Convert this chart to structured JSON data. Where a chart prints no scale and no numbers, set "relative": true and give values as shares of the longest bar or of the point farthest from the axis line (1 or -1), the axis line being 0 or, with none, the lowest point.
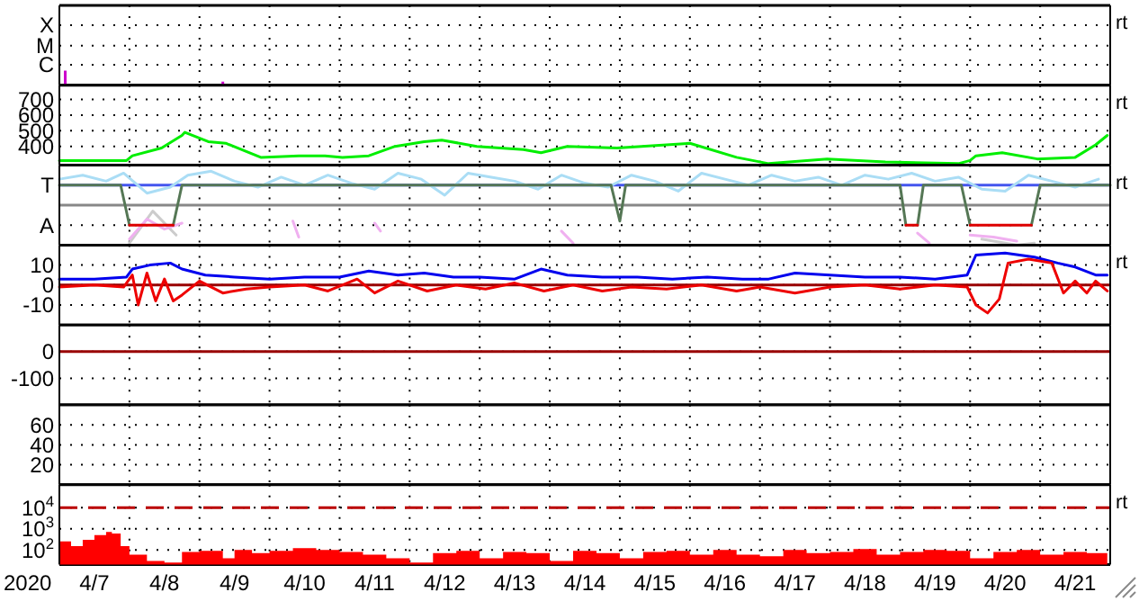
{
  "chart_data": [
    {
      "type": "bar",
      "relative": true,
      "grid": "x",
      "tick_labels": "y",
      "annotations": [
        "rt"
      ],
      "xlim": [
        "2020-04-07T00:00",
        "2020-04-22T00:00"
      ],
      "xticks": [
        {
          "value": "2020-04-08T00:00",
          "label": null
        },
        {
          "value": "2020-04-09T00:00",
          "label": null
        },
        {
          "value": "2020-04-10T00:00",
          "label": null
        },
        {
          "value": "2020-04-11T00:00",
          "label": null
        },
        {
          "value": "2020-04-12T00:00",
          "label": null
        },
        {
          "value": "2020-04-13T00:00",
          "label": null
        },
        {
          "value": "2020-04-14T00:00",
          "label": null
        },
        {
          "value": "2020-04-15T00:00",
          "label": null
        },
        {
          "value": "2020-04-16T00:00",
          "label": null
        },
        {
          "value": "2020-04-17T00:00",
          "label": null
        },
        {
          "value": "2020-04-18T00:00",
          "label": null
        },
        {
          "value": "2020-04-19T00:00",
          "label": null
        },
        {
          "value": "2020-04-20T00:00",
          "label": null
        },
        {
          "value": "2020-04-21T00:00",
          "label": null
        }
      ],
      "ref_lines": [
        {
          "axis": "y",
          "value": 1.4,
          "label": "C",
          "color": "#000000",
          "line_style": "dotted"
        },
        {
          "axis": "y",
          "value": 2.7,
          "label": "M",
          "color": "#000000",
          "line_style": "dotted"
        },
        {
          "axis": "y",
          "value": 4.1,
          "label": "X",
          "color": "#000000",
          "line_style": "dotted"
        }
      ],
      "series": [
        {
          "color": "#cc00cc",
          "x": [
            "2020-04-07T02:00",
            "2020-04-09T08:00"
          ],
          "values": [
            1,
            0.25
          ]
        }
      ]
    },
    {
      "type": "line",
      "grid": true,
      "tick_labels": "y",
      "annotations": [
        "rt"
      ],
      "xlim": [
        "2020-04-07T00:00",
        "2020-04-22T00:00"
      ],
      "xticks": [
        {
          "value": "2020-04-08T00:00",
          "label": null
        },
        {
          "value": "2020-04-09T00:00",
          "label": null
        },
        {
          "value": "2020-04-10T00:00",
          "label": null
        },
        {
          "value": "2020-04-11T00:00",
          "label": null
        },
        {
          "value": "2020-04-12T00:00",
          "label": null
        },
        {
          "value": "2020-04-13T00:00",
          "label": null
        },
        {
          "value": "2020-04-14T00:00",
          "label": null
        },
        {
          "value": "2020-04-15T00:00",
          "label": null
        },
        {
          "value": "2020-04-16T00:00",
          "label": null
        },
        {
          "value": "2020-04-17T00:00",
          "label": null
        },
        {
          "value": "2020-04-18T00:00",
          "label": null
        },
        {
          "value": "2020-04-19T00:00",
          "label": null
        },
        {
          "value": "2020-04-20T00:00",
          "label": null
        },
        {
          "value": "2020-04-21T00:00",
          "label": null
        }
      ],
      "ylim": [
        280,
        790
      ],
      "yticks": [
        400,
        500,
        600,
        700
      ],
      "series": [
        {
          "color": "#00ee00",
          "x": [
            "2020-04-07T00:00",
            "2020-04-07T23:00",
            "2020-04-08T01:00",
            "2020-04-08T11:00",
            "2020-04-08T18:00",
            "2020-04-08T19:00",
            "2020-04-09T03:00",
            "2020-04-09T09:00",
            "2020-04-09T21:00",
            "2020-04-10T10:00",
            "2020-04-10T19:00",
            "2020-04-11T01:00",
            "2020-04-11T10:00",
            "2020-04-11T19:00",
            "2020-04-12T05:00",
            "2020-04-12T11:00",
            "2020-04-12T23:00",
            "2020-04-13T15:00",
            "2020-04-13T21:00",
            "2020-04-14T06:00",
            "2020-04-14T23:00",
            "2020-04-16T00:00",
            "2020-04-16T16:00",
            "2020-04-17T03:00",
            "2020-04-17T23:00",
            "2020-04-18T19:00",
            "2020-04-19T20:00",
            "2020-04-20T00:00",
            "2020-04-20T02:00",
            "2020-04-20T11:00",
            "2020-04-20T23:00",
            "2020-04-21T12:00",
            "2020-04-21T19:00",
            "2020-04-21T23:00"
          ],
          "values": [
            310,
            310,
            340,
            390,
            470,
            490,
            430,
            420,
            330,
            340,
            340,
            330,
            340,
            400,
            430,
            440,
            400,
            380,
            360,
            400,
            390,
            420,
            330,
            290,
            320,
            300,
            290,
            310,
            340,
            360,
            320,
            330,
            410,
            470
          ]
        }
      ]
    },
    {
      "type": "line",
      "relative": true,
      "grid": "x",
      "tick_labels": "y",
      "annotations": [
        "rt"
      ],
      "xlim": [
        "2020-04-07T00:00",
        "2020-04-22T00:00"
      ],
      "xticks": [
        {
          "value": "2020-04-08T00:00",
          "label": null
        },
        {
          "value": "2020-04-09T00:00",
          "label": null
        },
        {
          "value": "2020-04-10T00:00",
          "label": null
        },
        {
          "value": "2020-04-11T00:00",
          "label": null
        },
        {
          "value": "2020-04-12T00:00",
          "label": null
        },
        {
          "value": "2020-04-13T00:00",
          "label": null
        },
        {
          "value": "2020-04-14T00:00",
          "label": null
        },
        {
          "value": "2020-04-15T00:00",
          "label": null
        },
        {
          "value": "2020-04-16T00:00",
          "label": null
        },
        {
          "value": "2020-04-17T00:00",
          "label": null
        },
        {
          "value": "2020-04-18T00:00",
          "label": null
        },
        {
          "value": "2020-04-19T00:00",
          "label": null
        },
        {
          "value": "2020-04-20T00:00",
          "label": null
        },
        {
          "value": "2020-04-21T00:00",
          "label": null
        }
      ],
      "ref_lines": [
        {
          "axis": "y",
          "value": 0.5,
          "label": "T",
          "color": "#4455ee"
        },
        {
          "axis": "y",
          "value": 0,
          "color": "#888888"
        },
        {
          "axis": "y",
          "value": -0.5,
          "label": "A",
          "color": "#000000",
          "line_style": "dotted"
        }
      ],
      "series": [
        {
          "color": "#cccccc",
          "x": [
            "2020-04-08T00:00",
            "2020-04-08T08:00",
            "2020-04-08T16:00",
            "2020-04-09T00:00",
            "2020-04-20T04:00",
            "2020-04-20T16:00",
            "2020-04-20T22:00"
          ],
          "values": [
            -0.95,
            -0.15,
            -0.75,
            null,
            -0.85,
            -1,
            -0.95
          ]
        },
        {
          "color": "#aaddf5",
          "x": [
            "2020-04-07T00:00",
            "2020-04-07T08:00",
            "2020-04-07T16:00",
            "2020-04-07T22:00",
            "2020-04-08T06:00",
            "2020-04-08T14:00",
            "2020-04-08T20:00",
            "2020-04-09T04:00",
            "2020-04-09T12:00",
            "2020-04-09T20:00",
            "2020-04-10T04:00",
            "2020-04-10T12:00",
            "2020-04-10T20:00",
            "2020-04-11T04:00",
            "2020-04-11T12:00",
            "2020-04-11T20:00",
            "2020-04-12T04:00",
            "2020-04-12T12:00",
            "2020-04-12T20:00",
            "2020-04-13T04:00",
            "2020-04-13T12:00",
            "2020-04-13T20:00",
            "2020-04-14T04:00",
            "2020-04-14T12:00",
            "2020-04-14T20:00",
            "2020-04-15T04:00",
            "2020-04-15T12:00",
            "2020-04-15T20:00",
            "2020-04-16T04:00",
            "2020-04-16T12:00",
            "2020-04-16T20:00",
            "2020-04-17T04:00",
            "2020-04-17T12:00",
            "2020-04-17T20:00",
            "2020-04-18T04:00",
            "2020-04-18T12:00",
            "2020-04-18T20:00",
            "2020-04-19T04:00",
            "2020-04-19T12:00",
            "2020-04-19T20:00",
            "2020-04-20T04:00",
            "2020-04-20T12:00",
            "2020-04-20T20:00",
            "2020-04-21T04:00",
            "2020-04-21T12:00",
            "2020-04-21T20:00"
          ],
          "values": [
            0.65,
            0.75,
            0.6,
            0.8,
            0.3,
            0.45,
            0.75,
            0.85,
            0.6,
            0.45,
            0.7,
            0.5,
            0.75,
            0.55,
            0.4,
            0.8,
            0.65,
            0.25,
            0.8,
            0.7,
            0.6,
            0.4,
            0.75,
            0.55,
            0.45,
            0.75,
            0.6,
            0.35,
            0.8,
            0.65,
            0.5,
            0.75,
            0.6,
            0.7,
            0.5,
            0.75,
            0.65,
            0.8,
            0.6,
            0.7,
            0.4,
            0.35,
            0.75,
            0.6,
            0.45,
            0.65
          ]
        },
        {
          "color": "#f0b0f0",
          "x": [
            "2020-04-08T00:00",
            "2020-04-08T06:00",
            "2020-04-08T12:00",
            "2020-04-08T18:00",
            "2020-04-09T00:00",
            "2020-04-10T08:00",
            "2020-04-10T10:00",
            "2020-04-10T14:00",
            "2020-04-11T12:00",
            "2020-04-11T14:00",
            "2020-04-11T18:00",
            "2020-04-14T04:00",
            "2020-04-14T08:00",
            "2020-04-14T12:00",
            "2020-04-19T06:00",
            "2020-04-19T10:00",
            "2020-04-19T14:00",
            "2020-04-20T00:00",
            "2020-04-20T08:00",
            "2020-04-20T16:00"
          ],
          "values": [
            -0.85,
            -0.35,
            -0.6,
            -0.45,
            null,
            -0.4,
            -0.8,
            null,
            -0.45,
            -0.65,
            null,
            -0.65,
            -0.95,
            null,
            -0.7,
            -0.95,
            null,
            -0.75,
            -0.8,
            -0.9
          ]
        },
        {
          "color": "#557755",
          "x": [
            "2020-04-07T00:00",
            "2020-04-07T21:00",
            "2020-04-08T00:00",
            "2020-04-08T07:00",
            "2020-04-08T15:00",
            "2020-04-08T18:00",
            "2020-04-14T21:00",
            "2020-04-15T00:00",
            "2020-04-15T02:00",
            "2020-04-19T00:00",
            "2020-04-19T02:00",
            "2020-04-19T04:00",
            "2020-04-19T06:00",
            "2020-04-19T08:00",
            "2020-04-19T21:00",
            "2020-04-20T00:00",
            "2020-04-20T10:00",
            "2020-04-20T21:00",
            "2020-04-21T00:00",
            "2020-04-22T00:00"
          ],
          "values": [
            0.5,
            0.5,
            -0.5,
            null,
            -0.5,
            0.5,
            0.5,
            -0.4,
            0.5,
            0.5,
            -0.5,
            null,
            -0.5,
            0.5,
            0.5,
            -0.5,
            null,
            -0.5,
            0.5,
            0.5
          ]
        },
        {
          "color": "#dd0000",
          "x": [
            "2020-04-08T00:00",
            "2020-04-08T15:00",
            "2020-04-08T16:00",
            "2020-04-19T02:00",
            "2020-04-19T06:00",
            "2020-04-19T07:00",
            "2020-04-20T00:00",
            "2020-04-20T21:00"
          ],
          "values": [
            -0.5,
            -0.5,
            null,
            -0.5,
            -0.5,
            null,
            -0.5,
            -0.5
          ]
        }
      ]
    },
    {
      "type": "line",
      "grid": true,
      "tick_labels": "y",
      "annotations": [
        "rt"
      ],
      "xlim": [
        "2020-04-07T00:00",
        "2020-04-22T00:00"
      ],
      "xticks": [
        {
          "value": "2020-04-08T00:00",
          "label": null
        },
        {
          "value": "2020-04-09T00:00",
          "label": null
        },
        {
          "value": "2020-04-10T00:00",
          "label": null
        },
        {
          "value": "2020-04-11T00:00",
          "label": null
        },
        {
          "value": "2020-04-12T00:00",
          "label": null
        },
        {
          "value": "2020-04-13T00:00",
          "label": null
        },
        {
          "value": "2020-04-14T00:00",
          "label": null
        },
        {
          "value": "2020-04-15T00:00",
          "label": null
        },
        {
          "value": "2020-04-16T00:00",
          "label": null
        },
        {
          "value": "2020-04-17T00:00",
          "label": null
        },
        {
          "value": "2020-04-18T00:00",
          "label": null
        },
        {
          "value": "2020-04-19T00:00",
          "label": null
        },
        {
          "value": "2020-04-20T00:00",
          "label": null
        },
        {
          "value": "2020-04-21T00:00",
          "label": null
        }
      ],
      "ylim": [
        -20,
        20
      ],
      "yticks": [
        -10,
        0,
        10
      ],
      "ref_lines": [
        {
          "axis": "y",
          "value": 0,
          "color": "#990000"
        }
      ],
      "series": [
        {
          "color": "#0000ee",
          "x": [
            "2020-04-07T00:00",
            "2020-04-07T12:00",
            "2020-04-07T23:00",
            "2020-04-08T01:00",
            "2020-04-08T07:00",
            "2020-04-08T14:00",
            "2020-04-08T18:00",
            "2020-04-09T02:00",
            "2020-04-09T12:00",
            "2020-04-10T00:00",
            "2020-04-10T12:00",
            "2020-04-11T00:00",
            "2020-04-11T10:00",
            "2020-04-11T20:00",
            "2020-04-12T05:00",
            "2020-04-12T15:00",
            "2020-04-13T00:00",
            "2020-04-13T12:00",
            "2020-04-13T21:00",
            "2020-04-14T06:00",
            "2020-04-14T18:00",
            "2020-04-15T06:00",
            "2020-04-15T18:00",
            "2020-04-16T06:00",
            "2020-04-16T18:00",
            "2020-04-17T03:00",
            "2020-04-17T12:00",
            "2020-04-18T00:00",
            "2020-04-18T12:00",
            "2020-04-19T00:00",
            "2020-04-19T12:00",
            "2020-04-19T23:00",
            "2020-04-20T02:00",
            "2020-04-20T12:00",
            "2020-04-20T22:00",
            "2020-04-21T06:00",
            "2020-04-21T12:00",
            "2020-04-21T19:00",
            "2020-04-21T23:00"
          ],
          "values": [
            3,
            3,
            4,
            8,
            10,
            11,
            8,
            5,
            4,
            3,
            4,
            4,
            7,
            5,
            6,
            4,
            4,
            3,
            8,
            5,
            4,
            4,
            3,
            4,
            3,
            3,
            6,
            5,
            4,
            4,
            3,
            5,
            15,
            16,
            14,
            11,
            9,
            5,
            5
          ]
        },
        {
          "color": "#ee0000",
          "x": [
            "2020-04-07T00:00",
            "2020-04-07T12:00",
            "2020-04-07T22:00",
            "2020-04-08T01:00",
            "2020-04-08T03:00",
            "2020-04-08T06:00",
            "2020-04-08T09:00",
            "2020-04-08T12:00",
            "2020-04-08T15:00",
            "2020-04-08T18:00",
            "2020-04-09T00:00",
            "2020-04-09T08:00",
            "2020-04-09T16:00",
            "2020-04-10T00:00",
            "2020-04-10T12:00",
            "2020-04-10T20:00",
            "2020-04-11T06:00",
            "2020-04-11T12:00",
            "2020-04-11T20:00",
            "2020-04-12T06:00",
            "2020-04-12T16:00",
            "2020-04-13T02:00",
            "2020-04-13T12:00",
            "2020-04-13T22:00",
            "2020-04-14T08:00",
            "2020-04-14T18:00",
            "2020-04-15T04:00",
            "2020-04-15T16:00",
            "2020-04-16T04:00",
            "2020-04-16T16:00",
            "2020-04-17T00:00",
            "2020-04-17T12:00",
            "2020-04-18T00:00",
            "2020-04-18T12:00",
            "2020-04-19T00:00",
            "2020-04-19T12:00",
            "2020-04-19T23:00",
            "2020-04-20T02:00",
            "2020-04-20T06:00",
            "2020-04-20T10:00",
            "2020-04-20T13:00",
            "2020-04-20T20:00",
            "2020-04-21T04:00",
            "2020-04-21T08:00",
            "2020-04-21T12:00",
            "2020-04-21T16:00",
            "2020-04-21T19:00",
            "2020-04-21T23:00"
          ],
          "values": [
            -1,
            0,
            -1,
            5,
            -10,
            6,
            -8,
            3,
            -8,
            -5,
            2,
            -4,
            -2,
            -1,
            0,
            -3,
            3,
            -4,
            2,
            -3,
            0,
            -2,
            1,
            -3,
            0,
            -3,
            -1,
            -2,
            0,
            -3,
            -1,
            -4,
            -1,
            0,
            -2,
            0,
            -1,
            -10,
            -14,
            -7,
            11,
            13,
            11,
            -4,
            2,
            -4,
            2,
            -3
          ]
        }
      ]
    },
    {
      "type": "line",
      "grid": true,
      "tick_labels": "y",
      "xlim": [
        "2020-04-07T00:00",
        "2020-04-22T00:00"
      ],
      "xticks": [
        {
          "value": "2020-04-08T00:00",
          "label": null
        },
        {
          "value": "2020-04-09T00:00",
          "label": null
        },
        {
          "value": "2020-04-10T00:00",
          "label": null
        },
        {
          "value": "2020-04-11T00:00",
          "label": null
        },
        {
          "value": "2020-04-12T00:00",
          "label": null
        },
        {
          "value": "2020-04-13T00:00",
          "label": null
        },
        {
          "value": "2020-04-14T00:00",
          "label": null
        },
        {
          "value": "2020-04-15T00:00",
          "label": null
        },
        {
          "value": "2020-04-16T00:00",
          "label": null
        },
        {
          "value": "2020-04-17T00:00",
          "label": null
        },
        {
          "value": "2020-04-18T00:00",
          "label": null
        },
        {
          "value": "2020-04-19T00:00",
          "label": null
        },
        {
          "value": "2020-04-20T00:00",
          "label": null
        },
        {
          "value": "2020-04-21T00:00",
          "label": null
        }
      ],
      "ylim": [
        -200,
        100
      ],
      "yticks": [
        -100,
        0
      ],
      "ref_lines": [
        {
          "axis": "y",
          "value": 0,
          "color": "#990000"
        }
      ]
    },
    {
      "type": "line",
      "grid": true,
      "tick_labels": "y",
      "xlim": [
        "2020-04-07T00:00",
        "2020-04-22T00:00"
      ],
      "xticks": [
        {
          "value": "2020-04-08T00:00",
          "label": null
        },
        {
          "value": "2020-04-09T00:00",
          "label": null
        },
        {
          "value": "2020-04-10T00:00",
          "label": null
        },
        {
          "value": "2020-04-11T00:00",
          "label": null
        },
        {
          "value": "2020-04-12T00:00",
          "label": null
        },
        {
          "value": "2020-04-13T00:00",
          "label": null
        },
        {
          "value": "2020-04-14T00:00",
          "label": null
        },
        {
          "value": "2020-04-15T00:00",
          "label": null
        },
        {
          "value": "2020-04-16T00:00",
          "label": null
        },
        {
          "value": "2020-04-17T00:00",
          "label": null
        },
        {
          "value": "2020-04-18T00:00",
          "label": null
        },
        {
          "value": "2020-04-19T00:00",
          "label": null
        },
        {
          "value": "2020-04-20T00:00",
          "label": null
        },
        {
          "value": "2020-04-21T00:00",
          "label": null
        }
      ],
      "ylim": [
        0,
        80
      ],
      "yticks": [
        20,
        40,
        60
      ]
    },
    {
      "type": "area",
      "log": "y",
      "grid": true,
      "annotations": [
        "rt"
      ],
      "xlabel": "2020",
      "xlim": [
        "2020-04-07T00:00",
        "2020-04-22T00:00"
      ],
      "xticks": [
        {
          "value": "2020-04-07T12:00",
          "label": "4/7"
        },
        {
          "value": "2020-04-08T00:00",
          "label": null
        },
        {
          "value": "2020-04-08T12:00",
          "label": "4/8"
        },
        {
          "value": "2020-04-09T00:00",
          "label": null
        },
        {
          "value": "2020-04-09T12:00",
          "label": "4/9"
        },
        {
          "value": "2020-04-10T00:00",
          "label": null
        },
        {
          "value": "2020-04-10T12:00",
          "label": "4/10"
        },
        {
          "value": "2020-04-11T00:00",
          "label": null
        },
        {
          "value": "2020-04-11T12:00",
          "label": "4/11"
        },
        {
          "value": "2020-04-12T00:00",
          "label": null
        },
        {
          "value": "2020-04-12T12:00",
          "label": "4/12"
        },
        {
          "value": "2020-04-13T00:00",
          "label": null
        },
        {
          "value": "2020-04-13T12:00",
          "label": "4/13"
        },
        {
          "value": "2020-04-14T00:00",
          "label": null
        },
        {
          "value": "2020-04-14T12:00",
          "label": "4/14"
        },
        {
          "value": "2020-04-15T00:00",
          "label": null
        },
        {
          "value": "2020-04-15T12:00",
          "label": "4/15"
        },
        {
          "value": "2020-04-16T00:00",
          "label": null
        },
        {
          "value": "2020-04-16T12:00",
          "label": "4/16"
        },
        {
          "value": "2020-04-17T00:00",
          "label": null
        },
        {
          "value": "2020-04-17T12:00",
          "label": "4/17"
        },
        {
          "value": "2020-04-18T00:00",
          "label": null
        },
        {
          "value": "2020-04-18T12:00",
          "label": "4/18"
        },
        {
          "value": "2020-04-19T00:00",
          "label": null
        },
        {
          "value": "2020-04-19T12:00",
          "label": "4/19"
        },
        {
          "value": "2020-04-20T00:00",
          "label": null
        },
        {
          "value": "2020-04-20T12:00",
          "label": "4/20"
        },
        {
          "value": "2020-04-21T00:00",
          "label": null
        },
        {
          "value": "2020-04-21T12:00",
          "label": "4/21"
        }
      ],
      "ylim": [
        20,
        120000
      ],
      "yticks": [
        {
          "value": 100,
          "label": "10$^{2}$"
        },
        {
          "value": 1000,
          "label": "10$^{3}$"
        },
        {
          "value": 10000,
          "label": "10$^{4}$"
        }
      ],
      "ref_lines": [
        {
          "axis": "y",
          "value": 10000,
          "color": "#bb0000",
          "line_style": "dashed"
        }
      ],
      "series": [
        {
          "color": "#ff0000",
          "x": [
            "2020-04-07T00:00",
            "2020-04-07T04:00",
            "2020-04-07T08:00",
            "2020-04-07T12:00",
            "2020-04-07T16:00",
            "2020-04-07T18:00",
            "2020-04-07T21:00",
            "2020-04-08T00:00",
            "2020-04-08T06:00",
            "2020-04-08T12:00",
            "2020-04-08T18:00",
            "2020-04-09T00:00",
            "2020-04-09T08:00",
            "2020-04-09T12:00",
            "2020-04-09T18:00",
            "2020-04-10T00:00",
            "2020-04-10T08:00",
            "2020-04-10T16:00",
            "2020-04-11T00:00",
            "2020-04-11T08:00",
            "2020-04-11T16:00",
            "2020-04-12T00:00",
            "2020-04-12T08:00",
            "2020-04-12T16:00",
            "2020-04-13T00:00",
            "2020-04-13T08:00",
            "2020-04-13T16:00",
            "2020-04-14T00:00",
            "2020-04-14T08:00",
            "2020-04-14T16:00",
            "2020-04-15T00:00",
            "2020-04-15T08:00",
            "2020-04-15T16:00",
            "2020-04-16T00:00",
            "2020-04-16T08:00",
            "2020-04-16T16:00",
            "2020-04-17T00:00",
            "2020-04-17T08:00",
            "2020-04-17T16:00",
            "2020-04-18T00:00",
            "2020-04-18T08:00",
            "2020-04-18T16:00",
            "2020-04-19T00:00",
            "2020-04-19T08:00",
            "2020-04-19T16:00",
            "2020-04-20T00:00",
            "2020-04-20T08:00",
            "2020-04-20T16:00",
            "2020-04-21T00:00",
            "2020-04-21T08:00",
            "2020-04-21T16:00",
            "2020-04-21T23:00"
          ],
          "values": [
            250,
            150,
            300,
            500,
            700,
            600,
            150,
            60,
            30,
            25,
            80,
            90,
            40,
            100,
            70,
            90,
            120,
            100,
            80,
            60,
            40,
            25,
            70,
            90,
            40,
            80,
            70,
            30,
            90,
            70,
            40,
            80,
            90,
            60,
            100,
            60,
            50,
            100,
            70,
            80,
            110,
            60,
            80,
            100,
            90,
            40,
            80,
            100,
            60,
            80,
            70,
            90
          ]
        }
      ]
    }
  ]
}
